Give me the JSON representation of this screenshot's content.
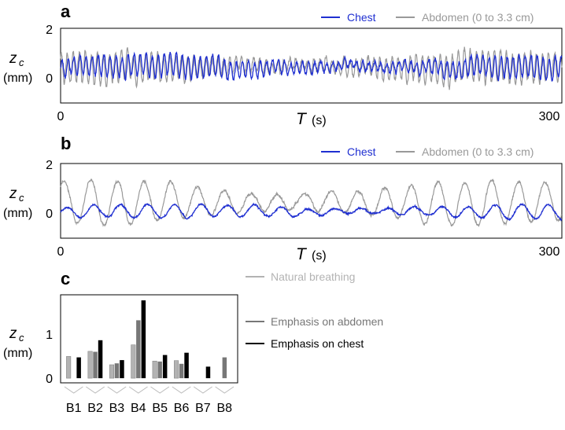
{
  "chart_data": [
    {
      "panel": "a",
      "type": "line",
      "xlabel_symbol": "T",
      "xlabel_unit": "(s)",
      "ylabel_symbol": "z",
      "ylabel_sub": "c",
      "ylabel_unit": "(mm)",
      "xlim": [
        0,
        300
      ],
      "ylim": [
        -0.9,
        2
      ],
      "x_ticks": [
        "0",
        "300"
      ],
      "y_ticks": [
        {
          "v": 2,
          "label": "2"
        },
        {
          "v": 0,
          "label": "0"
        }
      ],
      "grid": false,
      "legend_position": "top-right, above plot",
      "series": [
        {
          "name": "Chest",
          "color": "#1f2fd1",
          "baseline": 0.5,
          "amplitude": 0.4,
          "period_s": 3.6,
          "noise": 0.12
        },
        {
          "name": "Abdomen (0 to 3.3 cm)",
          "color": "#999999",
          "baseline": 0.5,
          "amplitude": 0.55,
          "period_s": 3.6,
          "noise": 0.15
        }
      ]
    },
    {
      "panel": "b",
      "type": "line",
      "xlabel_symbol": "T",
      "xlabel_unit": "(s)",
      "ylabel_symbol": "z",
      "ylabel_sub": "c",
      "ylabel_unit": "(mm)",
      "xlim": [
        0,
        300
      ],
      "ylim": [
        -0.9,
        2
      ],
      "x_ticks": [
        "0",
        "300"
      ],
      "y_ticks": [
        {
          "v": 2,
          "label": "2"
        },
        {
          "v": 0,
          "label": "0"
        }
      ],
      "grid": false,
      "legend_position": "top-right, above plot",
      "series": [
        {
          "name": "Chest",
          "color": "#1f2fd1",
          "baseline": 0.15,
          "amplitude": 0.25,
          "period_s": 16,
          "noise": 0.05
        },
        {
          "name": "Abdomen (0 to 3.3 cm)",
          "color": "#999999",
          "baseline": 0.5,
          "amplitude": 0.8,
          "period_s": 16,
          "noise": 0.08
        }
      ]
    },
    {
      "panel": "c",
      "type": "bar",
      "ylabel_symbol": "z",
      "ylabel_sub": "c",
      "ylabel_unit": "(mm)",
      "ylim": [
        -0.1,
        1.8
      ],
      "y_ticks": [
        {
          "v": 1,
          "label": "1"
        },
        {
          "v": 0,
          "label": "0"
        }
      ],
      "grid": false,
      "legend_position": "right of plot",
      "categories": [
        "B1",
        "B2",
        "B3",
        "B4",
        "B5",
        "B6",
        "B7",
        "B8"
      ],
      "series": [
        {
          "name": "Natural breathing",
          "color": "#b3b3b3",
          "values": [
            0.47,
            0.58,
            0.29,
            0.72,
            0.37,
            0.38,
            0,
            0
          ]
        },
        {
          "name": "Emphasis on abdomen",
          "color": "#777777",
          "values": [
            0,
            0.57,
            0.32,
            1.25,
            0.36,
            0.31,
            0,
            0.45
          ]
        },
        {
          "name": "Emphasis on chest",
          "color": "#000000",
          "values": [
            0.45,
            0.82,
            0.39,
            1.68,
            0.5,
            0.55,
            0.25,
            0
          ]
        }
      ]
    }
  ]
}
